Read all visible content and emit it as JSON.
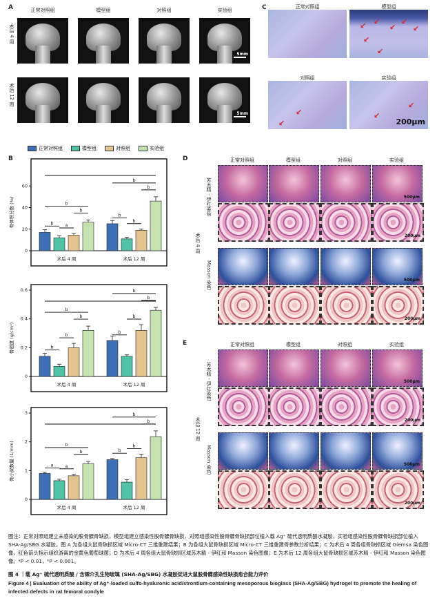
{
  "panelA": {
    "letter": "A",
    "groups": [
      "正常对照组",
      "模型组",
      "对照组",
      "实验组"
    ],
    "rows": [
      "术后 4 周",
      "术后 12 周"
    ],
    "scale": "5mm"
  },
  "panelC": {
    "letter": "C",
    "groups": [
      "正常对照组",
      "模型组",
      "对照组",
      "实验组"
    ],
    "scale": "200μm"
  },
  "panelB": {
    "letter": "B",
    "legend": [
      "正常对照组",
      "模型组",
      "对照组",
      "实验组"
    ],
    "colors": [
      "#3d6fb6",
      "#4fc3a6",
      "#e4c48e",
      "#c4e3b1"
    ]
  },
  "panelD": {
    "letter": "D",
    "groups": [
      "正常对照组",
      "模型组",
      "对照组",
      "实验组"
    ],
    "stain1": "苏木精 - 伊红染色",
    "stain2": "Masson 染色",
    "row": "术后 4 周",
    "scales": [
      "500μm",
      "200μm",
      "500μm",
      "200μm"
    ]
  },
  "panelE": {
    "letter": "E",
    "groups": [
      "正常对照组",
      "模型组",
      "对照组",
      "实验组"
    ],
    "stain1": "苏木精 - 伊红染色",
    "stain2": "Masson 染色",
    "row": "术后 12 周",
    "scales": [
      "500μm",
      "200μm",
      "500μm",
      "200μm"
    ]
  },
  "chart_data": [
    {
      "type": "bar",
      "title": "",
      "ylabel": "骨体积分数 (%)",
      "categories": [
        "术后 4 周",
        "术后 12 周"
      ],
      "ylim": [
        0,
        80
      ],
      "yticks": [
        0,
        20,
        40,
        60
      ],
      "series": [
        {
          "name": "正常对照组",
          "values": [
            17,
            25
          ],
          "err": [
            2.5,
            3
          ]
        },
        {
          "name": "模型组",
          "values": [
            12,
            11
          ],
          "err": [
            2,
            1.5
          ]
        },
        {
          "name": "对照组",
          "values": [
            14.5,
            19
          ],
          "err": [
            1.5,
            1
          ]
        },
        {
          "name": "实验组",
          "values": [
            26.5,
            46
          ],
          "err": [
            2,
            4
          ]
        }
      ],
      "annotations": [
        "b",
        "a",
        "b",
        "b",
        "b",
        "b",
        "b",
        "b"
      ]
    },
    {
      "type": "bar",
      "title": "",
      "ylabel": "骨密度 (g/cm³)",
      "categories": [
        "术后 4 周",
        "术后 12 周"
      ],
      "ylim": [
        0,
        0.6
      ],
      "yticks": [
        0,
        0.2,
        0.4,
        0.6
      ],
      "series": [
        {
          "name": "正常对照组",
          "values": [
            0.14,
            0.25
          ],
          "err": [
            0.02,
            0.03
          ]
        },
        {
          "name": "模型组",
          "values": [
            0.07,
            0.14
          ],
          "err": [
            0.015,
            0.01
          ]
        },
        {
          "name": "对照组",
          "values": [
            0.2,
            0.32
          ],
          "err": [
            0.03,
            0.04
          ]
        },
        {
          "name": "实验组",
          "values": [
            0.32,
            0.46
          ],
          "err": [
            0.03,
            0.02
          ]
        }
      ],
      "annotations": [
        "b",
        "b",
        "b",
        "b",
        "b",
        "b",
        "b",
        "b"
      ]
    },
    {
      "type": "bar",
      "title": "",
      "ylabel": "骨小梁数量 (1/mm)",
      "categories": [
        "术后 4 周",
        "术后 12 周"
      ],
      "ylim": [
        0,
        3
      ],
      "yticks": [
        0,
        1,
        2,
        3
      ],
      "series": [
        {
          "name": "正常对照组",
          "values": [
            0.9,
            1.38
          ],
          "err": [
            0.05,
            0.04
          ]
        },
        {
          "name": "模型组",
          "values": [
            0.65,
            0.6
          ],
          "err": [
            0.05,
            0.08
          ]
        },
        {
          "name": "对照组",
          "values": [
            0.82,
            1.45
          ],
          "err": [
            0.05,
            0.12
          ]
        },
        {
          "name": "实验组",
          "values": [
            1.24,
            2.18
          ],
          "err": [
            0.08,
            0.2
          ]
        }
      ],
      "annotations": [
        "a",
        "a",
        "b",
        "b",
        "b",
        "b",
        "b",
        "b"
      ]
    }
  ],
  "caption": {
    "note": "图注：正常对照组建立未感染的股骨髁骨缺损，模型组建立感染性股骨髁骨缺损，对照组感染性股骨髁骨缺损部位植入载 Ag⁺ 硫代透明质酸水凝胶，实验组感染性股骨髁骨缺损部位植入 SHA-Ag/SBG 水凝胶。图 A 为各组大鼠骨缺损区域 Micro-CT 三维重建结果；B 为各组大鼠骨缺损区域 Micro-CT 三维重建骨参数分析结果；C 为术后 4 周各组骨缺损区域 Giemsa 染色图像，红色箭头指示组织游离的金黄色葡萄球菌；D 为术后 4 周各组大鼠骨缺损区域苏木精 - 伊红和 Masson 染色图像；E 为术后 12 周各组大鼠骨缺损区域苏木精 - 伊红和 Masson 染色图像。ᵃP < 0.01，ᵇP < 0.001。",
    "title_cn": "图 4 ｜载 Ag⁺ 硫代透明质酸 / 含锶介孔生物玻璃 (SHA-Ag/SBG) 水凝胶促进大鼠股骨髁感染性缺损愈合能力评价",
    "title_en": "Figure 4 | Evaluation of the ability of Ag⁺-loaded sulfo-hyaluronic acid/strontium-containing mesoporous bioglass (SHA-Ag/SBG) hydrogel to promote the healing of infected defects in rat femoral condyle"
  }
}
